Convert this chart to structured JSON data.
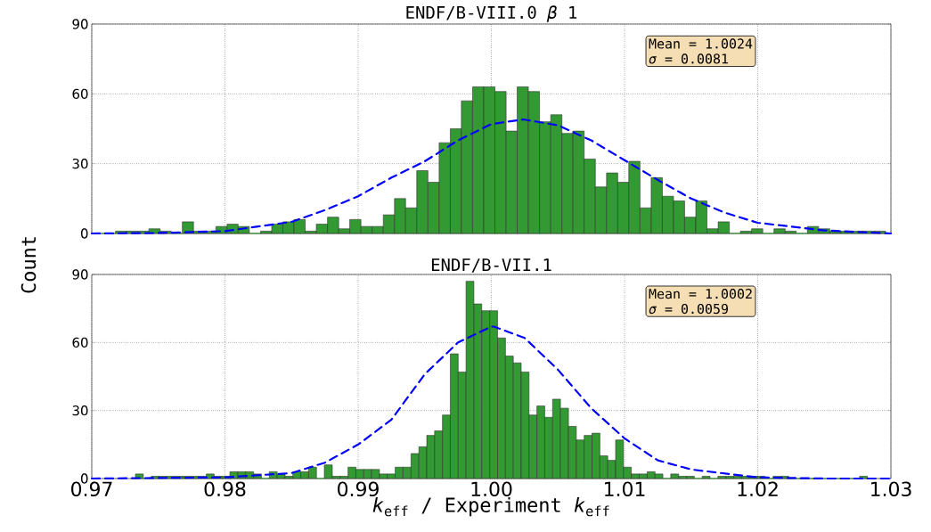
{
  "chart_data": [
    {
      "type": "histogram",
      "title": "ENDF/B-VIII.0 *β* 1",
      "ylabel": "Count",
      "xlim": [
        0.97,
        1.03
      ],
      "ylim": [
        0,
        90
      ],
      "yticks": [
        0,
        30,
        60,
        90
      ],
      "xticks": [
        0.97,
        0.98,
        0.99,
        1.0,
        1.01,
        1.02,
        1.03
      ],
      "grid": true,
      "tick_labels": "y",
      "annotations": [
        "Mean = 1.0024",
        "*σ* = 0.0081"
      ],
      "series": [
        {
          "color": "#339933",
          "bins": [
            0.9701,
            0.97094,
            0.97178,
            0.97261,
            0.97345,
            0.97429,
            0.97513,
            0.97597,
            0.9768,
            0.97764,
            0.97848,
            0.97932,
            0.98016,
            0.98099,
            0.98183,
            0.98267,
            0.98351,
            0.98435,
            0.98518,
            0.98602,
            0.98686,
            0.9877,
            0.98854,
            0.98937,
            0.99021,
            0.99105,
            0.99189,
            0.99273,
            0.99356,
            0.9944,
            0.99524,
            0.99608,
            0.99692,
            0.99775,
            0.99859,
            0.99943,
            1.00027,
            1.00111,
            1.00194,
            1.00278,
            1.00362,
            1.00446,
            1.0053,
            1.00613,
            1.00697,
            1.00781,
            1.00865,
            1.00949,
            1.01032,
            1.01116,
            1.012,
            1.01284,
            1.01368,
            1.01451,
            1.01535,
            1.01619,
            1.01703,
            1.01787,
            1.0187,
            1.01954,
            1.02038,
            1.02122,
            1.02206,
            1.02289,
            1.02373,
            1.02457,
            1.02541,
            1.02625,
            1.02708,
            1.02792,
            1.02876,
            1.0296
          ],
          "values": [
            0,
            0,
            1,
            1,
            1,
            2,
            1,
            0,
            5,
            1,
            1,
            3,
            4,
            3,
            0,
            1,
            4,
            5,
            6,
            1,
            4,
            7,
            2,
            6,
            3,
            3,
            8,
            15,
            11,
            27,
            22,
            39,
            45,
            57,
            63,
            63,
            61,
            44,
            63,
            61,
            48,
            51,
            43,
            44,
            32,
            20,
            26,
            22,
            31,
            11,
            24,
            16,
            14,
            7,
            14,
            2,
            5,
            0,
            1,
            2,
            0,
            2,
            1,
            0,
            3,
            2,
            1,
            1,
            1,
            1,
            1
          ]
        },
        {
          "type": "line",
          "color": "#0000ff",
          "line_style": "dashed",
          "x": [
            0.97,
            0.975,
            0.98,
            0.9825,
            0.985,
            0.9875,
            0.99,
            0.9925,
            0.995,
            0.9975,
            1.0,
            1.0024,
            1.005,
            1.0075,
            1.01,
            1.0125,
            1.015,
            1.0175,
            1.02,
            1.025,
            1.03
          ],
          "values": [
            0,
            0.2,
            1,
            3,
            5,
            10,
            16,
            24,
            31,
            40,
            47,
            49,
            46.5,
            40,
            31.5,
            23,
            15,
            9,
            4.6,
            1.3,
            0
          ]
        }
      ]
    },
    {
      "type": "histogram",
      "title": "ENDF/B-VII.1",
      "xlabel": "*k*$_{eff}$ / Experiment *k*$_{eff}$",
      "xlim": [
        0.97,
        1.03
      ],
      "xticks": [
        0.97,
        0.98,
        0.99,
        {
          "value": 1.0,
          "label": "1.00"
        },
        1.01,
        1.02,
        1.03
      ],
      "ylim": [
        0,
        90
      ],
      "yticks": [
        0,
        30,
        60,
        90
      ],
      "grid": true,
      "annotations": [
        "Mean = 1.0002",
        "*σ* = 0.0059"
      ],
      "series": [
        {
          "color": "#339933",
          "bins": [
            0.97328,
            0.97387,
            0.97446,
            0.97505,
            0.97564,
            0.97624,
            0.97683,
            0.97742,
            0.97801,
            0.9786,
            0.97919,
            0.97978,
            0.98037,
            0.98096,
            0.98155,
            0.98215,
            0.98274,
            0.98333,
            0.98392,
            0.98451,
            0.9851,
            0.98569,
            0.98628,
            0.98687,
            0.98746,
            0.98806,
            0.98865,
            0.98924,
            0.98983,
            0.99042,
            0.99101,
            0.9916,
            0.99219,
            0.99278,
            0.99337,
            0.99397,
            0.99456,
            0.99515,
            0.99574,
            0.99633,
            0.99692,
            0.99751,
            0.9981,
            0.99869,
            0.99928,
            0.99988,
            1.00047,
            1.00106,
            1.00165,
            1.00224,
            1.00283,
            1.00342,
            1.00401,
            1.0046,
            1.00519,
            1.00579,
            1.00638,
            1.00697,
            1.00756,
            1.00815,
            1.00874,
            1.00933,
            1.00992,
            1.01051,
            1.0111,
            1.0117,
            1.01229,
            1.01288,
            1.01347,
            1.01406,
            1.01465,
            1.01524,
            1.01583,
            1.01642,
            1.01701,
            1.01761,
            1.0182,
            1.01879,
            1.01938,
            1.01997,
            1.02056,
            1.02115,
            1.02174,
            1.02233,
            1.02292,
            1.02352,
            1.02411,
            1.0247,
            1.02529,
            1.02588,
            1.02647,
            1.02706,
            1.02765,
            1.02824
          ],
          "values": [
            2,
            0,
            1,
            1,
            1,
            1,
            1,
            1,
            1,
            2,
            1,
            1,
            3,
            3,
            3,
            2,
            0,
            3,
            2,
            1,
            3,
            3,
            5,
            0,
            6,
            1,
            1,
            5,
            4,
            4,
            4,
            2,
            2,
            5,
            5,
            11,
            14,
            19,
            21,
            28,
            55,
            47,
            87,
            77,
            74,
            74,
            62,
            54,
            51,
            47,
            28,
            32,
            27,
            35,
            31,
            23,
            17,
            19,
            20,
            10,
            8,
            17,
            5,
            2,
            2,
            3,
            2,
            0,
            2,
            1,
            1,
            0,
            1,
            0,
            1,
            1,
            1,
            1,
            1,
            1,
            0,
            1,
            1,
            0,
            0,
            0,
            0,
            0,
            0,
            0,
            0,
            0,
            1
          ]
        },
        {
          "type": "line",
          "color": "#0000ff",
          "line_style": "dashed",
          "x": [
            0.97,
            0.98,
            0.985,
            0.9875,
            0.99,
            0.9925,
            0.995,
            0.9975,
            1.0,
            1.0002,
            1.0025,
            1.005,
            1.0075,
            1.01,
            1.0125,
            1.015,
            1.02,
            1.025,
            1.03
          ],
          "values": [
            0,
            0.5,
            2.4,
            7,
            15,
            26,
            46,
            60,
            67,
            67,
            62,
            48,
            31,
            17.7,
            8,
            4,
            0.5,
            0,
            0
          ]
        }
      ]
    }
  ]
}
